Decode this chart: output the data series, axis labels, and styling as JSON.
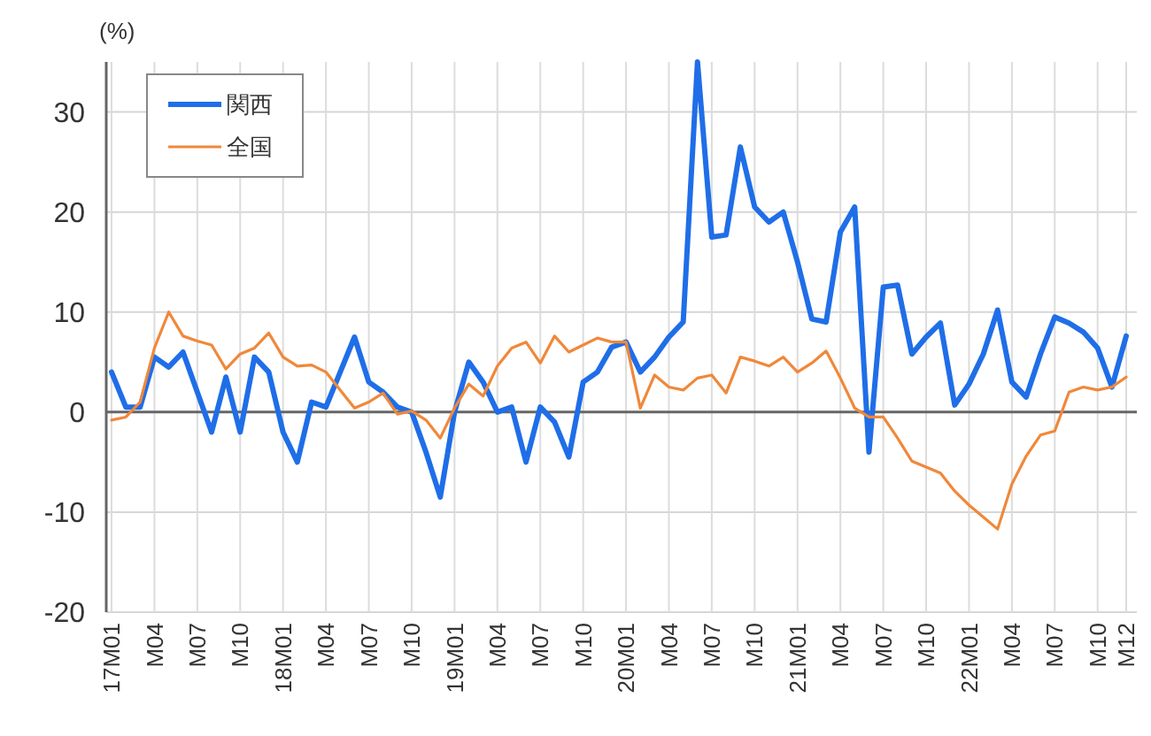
{
  "chart_data": {
    "type": "line",
    "ylabel": "(%)",
    "categories": [
      "17M01",
      null,
      null,
      "M04",
      null,
      null,
      "M07",
      null,
      null,
      "M10",
      null,
      null,
      "18M01",
      null,
      null,
      "M04",
      null,
      null,
      "M07",
      null,
      null,
      "M10",
      null,
      null,
      "19M01",
      null,
      null,
      "M04",
      null,
      null,
      "M07",
      null,
      null,
      "M10",
      null,
      null,
      "20M01",
      null,
      null,
      "M04",
      null,
      null,
      "M07",
      null,
      null,
      "M10",
      null,
      null,
      "21M01",
      null,
      null,
      "M04",
      null,
      null,
      "M07",
      null,
      null,
      "M10",
      null,
      null,
      "22M01",
      null,
      null,
      "M04",
      null,
      null,
      "M07",
      null,
      null,
      "M10",
      null,
      "M12"
    ],
    "series": [
      {
        "name": "関西",
        "color": "#1f6ee8",
        "values": [
          4,
          0.5,
          0.5,
          5.5,
          4.5,
          6,
          2,
          -2,
          3.5,
          -2,
          5.5,
          4,
          -2,
          -5,
          1,
          0.5,
          4,
          7.5,
          3,
          2,
          0.5,
          0,
          -4,
          -8.5,
          0,
          5,
          3,
          0,
          0.5,
          -5,
          0.5,
          -1,
          -4.5,
          3,
          4,
          6.5,
          7,
          4,
          5.5,
          7.5,
          9,
          35,
          17.5,
          17.7,
          26.5,
          20.5,
          19,
          20,
          15,
          9.3,
          9,
          18,
          20.5,
          -4,
          12.5,
          12.7,
          5.8,
          7.5,
          8.9,
          0.7,
          2.8,
          5.8,
          10.2,
          3,
          1.5,
          5.8,
          9.5,
          8.9,
          8,
          6.4,
          2.5,
          7.6
        ]
      },
      {
        "name": "全国",
        "color": "#f0883a",
        "values": [
          -0.8,
          -0.5,
          1,
          6.4,
          10,
          7.6,
          7.1,
          6.7,
          4.3,
          5.8,
          6.4,
          7.9,
          5.5,
          4.6,
          4.7,
          4,
          2.2,
          0.4,
          1,
          1.9,
          -0.2,
          0.1,
          -0.8,
          -2.6,
          0.4,
          2.8,
          1.6,
          4.6,
          6.4,
          7,
          4.9,
          7.6,
          6,
          6.7,
          7.4,
          7,
          7,
          0.4,
          3.7,
          2.5,
          2.2,
          3.4,
          3.7,
          1.9,
          5.5,
          5.1,
          4.6,
          5.5,
          4,
          4.9,
          6.1,
          3.4,
          0.4,
          -0.5,
          -0.5,
          -2.6,
          -4.9,
          -5.5,
          -6.1,
          -7.9,
          -9.3,
          -10.5,
          -11.7,
          -7.2,
          -4.4,
          -2.3,
          -1.9,
          2,
          2.5,
          2.2,
          2.5,
          3.5
        ]
      }
    ],
    "ylim": [
      -20,
      35
    ],
    "yticks": [
      -20,
      -10,
      0,
      10,
      20,
      30
    ],
    "grid": true,
    "legend": "top left"
  }
}
